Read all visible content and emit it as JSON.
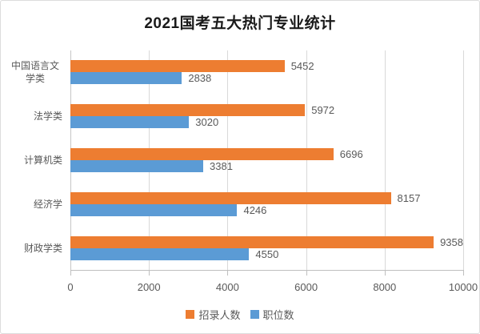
{
  "title": "2021国考五大热门专业统计",
  "colors": {
    "recruit_orange": "#ED7D31",
    "position_blue": "#5B9BD5",
    "axis_text": "#595959",
    "gridline": "#D9D9D9",
    "title_text": "#1A1A1A"
  },
  "legend": {
    "items": [
      {
        "label": "招录人数",
        "color": "#ED7D31"
      },
      {
        "label": "职位数",
        "color": "#5B9BD5"
      }
    ]
  },
  "chart_data": {
    "type": "bar",
    "orientation": "horizontal",
    "title": "2021国考五大热门专业统计",
    "categories": [
      "中国语言文学类",
      "法学类",
      "计算机类",
      "经济学",
      "财政学类"
    ],
    "series": [
      {
        "name": "招录人数",
        "color": "#ED7D31",
        "values": [
          5452,
          5972,
          6696,
          8157,
          9358
        ]
      },
      {
        "name": "职位数",
        "color": "#5B9BD5",
        "values": [
          2838,
          3020,
          3381,
          4246,
          4550
        ]
      }
    ],
    "x_axis": {
      "min": 0,
      "max": 10000,
      "ticks": [
        0,
        2000,
        4000,
        6000,
        8000,
        10000
      ]
    },
    "grid": true,
    "data_labels": true,
    "legend_position": "bottom"
  }
}
